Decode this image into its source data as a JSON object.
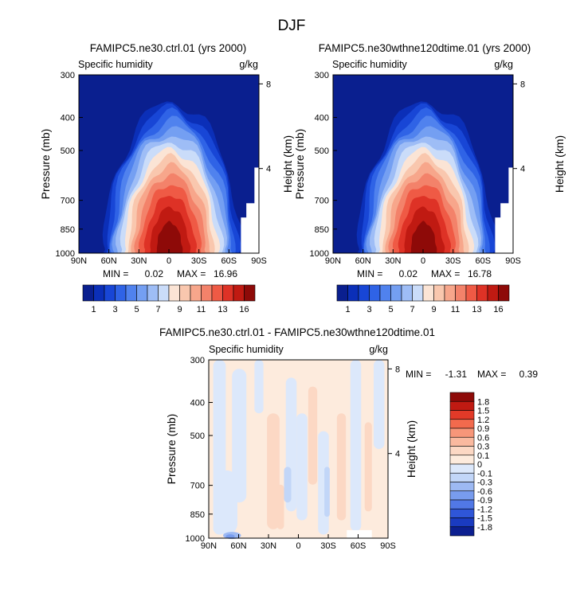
{
  "page_title": "DJF",
  "colorbar_colors": [
    "#0a1f8f",
    "#0b2fb8",
    "#1846d6",
    "#2f63e6",
    "#5082ee",
    "#749ff2",
    "#9ebdf6",
    "#cadcf9",
    "#fbe4d5",
    "#f9c7ae",
    "#f7a68b",
    "#f3826a",
    "#ef5a45",
    "#de3226",
    "#c01a12",
    "#8e0a08"
  ],
  "colorbar_labels": [
    "1",
    "3",
    "5",
    "7",
    "9",
    "11",
    "13",
    "16"
  ],
  "diff_colors": [
    "#8e0a08",
    "#c01a12",
    "#e23a28",
    "#f26a4d",
    "#f79679",
    "#fab99f",
    "#fcd8c4",
    "#fdebdd",
    "#dce8fb",
    "#c2d6f8",
    "#9db9f3",
    "#789cee",
    "#5178e6",
    "#2f56d8",
    "#1a3bc0",
    "#0c1f90"
  ],
  "diff_labels": [
    "1.8",
    "1.5",
    "1.2",
    "0.9",
    "0.6",
    "0.3",
    "0.1",
    "0",
    "-0.1",
    "-0.3",
    "-0.6",
    "-0.9",
    "-1.2",
    "-1.5",
    "-1.8"
  ],
  "chart_data": [
    {
      "type": "heatmap",
      "title": "FAMIPC5.ne30.ctrl.01 (yrs 2000)",
      "subtitle": "Specific humidity",
      "units": "g/kg",
      "ylabel": "Pressure (mb)",
      "ylabel_right": "Height (km)",
      "x_ticks": [
        "90N",
        "60N",
        "30N",
        "0",
        "30S",
        "60S",
        "90S"
      ],
      "y_ticks": [
        "300",
        "400",
        "500",
        "700",
        "850",
        "1000"
      ],
      "y_right_ticks": [
        "8",
        "4"
      ],
      "ylim": [
        1000,
        300
      ],
      "min_label": "MIN =",
      "min_value": "0.02",
      "max_label": "MAX =",
      "max_value": "16.96",
      "peak_value": 16.96
    },
    {
      "type": "heatmap",
      "title": "FAMIPC5.ne30wthne120dtime.01 (yrs 2000)",
      "subtitle": "Specific humidity",
      "units": "g/kg",
      "ylabel": "Pressure (mb)",
      "ylabel_right": "Height (km)",
      "x_ticks": [
        "90N",
        "60N",
        "30N",
        "0",
        "30S",
        "60S",
        "90S"
      ],
      "y_ticks": [
        "300",
        "400",
        "500",
        "700",
        "850",
        "1000"
      ],
      "y_right_ticks": [
        "8",
        "4"
      ],
      "ylim": [
        1000,
        300
      ],
      "min_label": "MIN =",
      "min_value": "0.02",
      "max_label": "MAX =",
      "max_value": "16.78",
      "peak_value": 16.78
    },
    {
      "type": "heatmap",
      "title": "FAMIPC5.ne30.ctrl.01 - FAMIPC5.ne30wthne120dtime.01",
      "subtitle": "Specific humidity",
      "units": "g/kg",
      "ylabel": "Pressure (mb)",
      "ylabel_right": "Height (km)",
      "x_ticks": [
        "90N",
        "60N",
        "30N",
        "0",
        "30S",
        "60S",
        "90S"
      ],
      "y_ticks": [
        "300",
        "400",
        "500",
        "700",
        "850",
        "1000"
      ],
      "y_right_ticks": [
        "8",
        "4"
      ],
      "ylim": [
        1000,
        300
      ],
      "min_label": "MIN =",
      "min_value": "-1.31",
      "max_label": "MAX =",
      "max_value": "0.39"
    }
  ]
}
